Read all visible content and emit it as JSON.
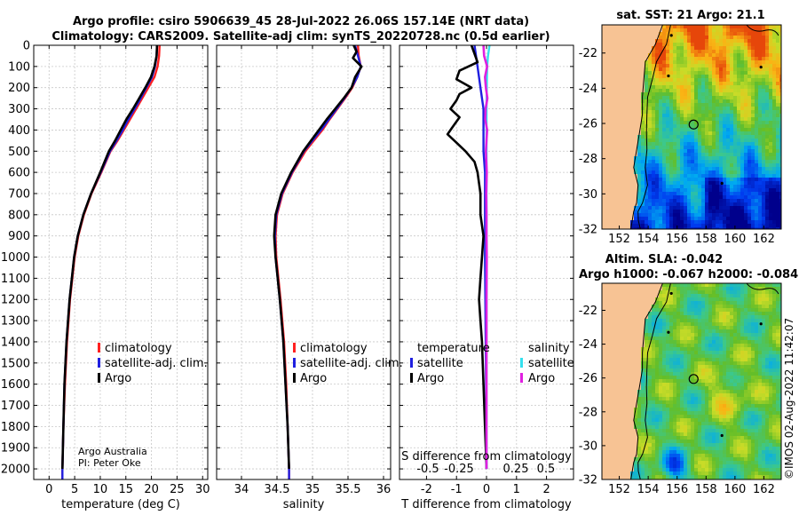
{
  "title": {
    "line1": "Argo profile: csiro 5906639_45 28-Jul-2022 26.06S 157.14E (NRT data)",
    "line2": "Climatology: CARS2009. Satellite-adj clim: synTS_20220728.nc (0.5d earlier)"
  },
  "credits": {
    "org": "Argo Australia",
    "pi": "PI: Peter Oke",
    "imos": "©IMOS 02-Aug-2022 11:42:07"
  },
  "colors": {
    "climatology": "#ff2020",
    "satellite": "#1f1fe0",
    "argo": "#000000",
    "t_sat": "#1f1fe0",
    "s_sat": "#33e0ee",
    "s_argo": "#e020e0",
    "land": "#f7c394"
  },
  "chart_data": [
    {
      "type": "line",
      "name": "temperature-profile",
      "xlabel": "temperature (deg C)",
      "ylabel": "",
      "xlim": [
        -3,
        31
      ],
      "ylim": [
        2050,
        0
      ],
      "xticks": [
        0,
        5,
        10,
        15,
        20,
        25,
        30
      ],
      "yticks": [
        0,
        100,
        200,
        300,
        400,
        500,
        600,
        700,
        800,
        900,
        1000,
        1100,
        1200,
        1300,
        1400,
        1500,
        1600,
        1700,
        1800,
        1900,
        2000
      ],
      "legend": [
        "climatology",
        "satellite-adj. clim.",
        "Argo"
      ],
      "series": [
        {
          "name": "climatology",
          "color": "#ff2020",
          "depth": [
            0,
            50,
            100,
            150,
            200,
            250,
            300,
            350,
            400,
            450,
            500,
            600,
            700,
            800,
            900,
            1000,
            1200,
            1400,
            1600,
            1800,
            2000,
            2050
          ],
          "values": [
            21.6,
            21.5,
            21.2,
            20.6,
            19.4,
            18.2,
            17.0,
            15.8,
            14.6,
            13.4,
            12.0,
            10.2,
            8.3,
            6.8,
            5.7,
            5.0,
            4.1,
            3.5,
            3.1,
            2.8,
            2.6,
            2.6
          ]
        },
        {
          "name": "satellite-adj. clim.",
          "color": "#1f1fe0",
          "depth": [
            0,
            50,
            100,
            150,
            200,
            250,
            300,
            350,
            400,
            450,
            500,
            600,
            700,
            800,
            900,
            1000,
            1200,
            1400,
            1600,
            1800,
            2000,
            2050
          ],
          "values": [
            21.1,
            21.0,
            20.7,
            20.1,
            19.0,
            17.9,
            16.7,
            15.5,
            14.4,
            13.2,
            11.9,
            10.1,
            8.2,
            6.7,
            5.6,
            4.9,
            4.0,
            3.4,
            3.0,
            2.8,
            2.6,
            2.6
          ]
        },
        {
          "name": "Argo",
          "color": "#000000",
          "depth": [
            0,
            50,
            100,
            150,
            200,
            250,
            300,
            350,
            400,
            450,
            500,
            600,
            700,
            800,
            900,
            1000,
            1200,
            1400,
            1600,
            1800,
            2000
          ],
          "values": [
            21.1,
            21.0,
            20.6,
            19.9,
            18.8,
            17.6,
            16.4,
            15.1,
            14.0,
            12.9,
            11.7,
            10.0,
            8.2,
            6.7,
            5.6,
            4.9,
            4.0,
            3.4,
            3.0,
            2.8,
            2.6
          ]
        }
      ]
    },
    {
      "type": "line",
      "name": "salinity-profile",
      "xlabel": "salinity",
      "ylabel": "",
      "xlim": [
        33.65,
        36.1
      ],
      "ylim": [
        2050,
        0
      ],
      "xticks": [
        34,
        34.5,
        35,
        35.5,
        36
      ],
      "legend": [
        "climatology",
        "satellite-adj. clim.",
        "Argo"
      ],
      "series": [
        {
          "name": "climatology",
          "color": "#ff2020",
          "depth": [
            0,
            50,
            100,
            150,
            200,
            250,
            300,
            350,
            400,
            450,
            500,
            600,
            700,
            800,
            900,
            1000,
            1200,
            1400,
            1600,
            1800,
            2000,
            2050
          ],
          "values": [
            35.64,
            35.65,
            35.68,
            35.63,
            35.56,
            35.46,
            35.35,
            35.24,
            35.14,
            35.02,
            34.9,
            34.72,
            34.58,
            34.5,
            34.48,
            34.49,
            34.55,
            34.6,
            34.63,
            34.65,
            34.67,
            34.67
          ]
        },
        {
          "name": "satellite-adj. clim.",
          "color": "#1f1fe0",
          "depth": [
            0,
            50,
            100,
            150,
            200,
            250,
            300,
            350,
            400,
            450,
            500,
            600,
            700,
            800,
            900,
            1000,
            1200,
            1400,
            1600,
            1800,
            2000,
            2050
          ],
          "values": [
            35.6,
            35.64,
            35.68,
            35.63,
            35.55,
            35.45,
            35.34,
            35.23,
            35.12,
            35.0,
            34.88,
            34.71,
            34.57,
            34.49,
            34.47,
            34.48,
            34.54,
            34.59,
            34.62,
            34.65,
            34.67,
            34.67
          ]
        },
        {
          "name": "Argo",
          "color": "#000000",
          "depth": [
            0,
            30,
            60,
            100,
            150,
            200,
            250,
            300,
            350,
            400,
            450,
            500,
            600,
            700,
            800,
            900,
            1000,
            1200,
            1400,
            1600,
            1800,
            2000
          ],
          "values": [
            35.58,
            35.62,
            35.57,
            35.69,
            35.6,
            35.55,
            35.44,
            35.32,
            35.2,
            35.09,
            34.98,
            34.87,
            34.7,
            34.56,
            34.48,
            34.46,
            34.48,
            34.54,
            34.59,
            34.62,
            34.65,
            34.67
          ]
        }
      ]
    },
    {
      "type": "line",
      "name": "difference-from-climatology",
      "xlabel": "T difference from climatology",
      "xlabel2": "S difference from climatology",
      "xlim": [
        -2.9,
        2.9
      ],
      "ylim": [
        2050,
        0
      ],
      "xticks": [
        -2,
        -1,
        0,
        1,
        2
      ],
      "s_ticks": [
        -0.5,
        -0.25,
        0,
        0.25,
        0.5
      ],
      "s_tick_labels": [
        "-0.5",
        "-0.25",
        "0",
        "0.25",
        "0.5"
      ],
      "legend_headers": [
        "temperature",
        "salinity"
      ],
      "legend": [
        "satellite",
        "Argo",
        "satellite",
        "Argo"
      ],
      "series": [
        {
          "name": "temperature satellite",
          "color": "#1f1fe0",
          "depth": [
            0,
            100,
            200,
            300,
            400,
            500,
            600,
            800,
            1000,
            1500,
            2000
          ],
          "values": [
            -0.4,
            -0.3,
            -0.2,
            -0.1,
            -0.1,
            -0.1,
            -0.05,
            -0.05,
            -0.05,
            -0.02,
            0
          ]
        },
        {
          "name": "temperature Argo",
          "color": "#000000",
          "depth": [
            0,
            40,
            80,
            120,
            160,
            200,
            230,
            260,
            300,
            340,
            380,
            420,
            460,
            500,
            550,
            600,
            700,
            800,
            900,
            1000,
            1100,
            1200,
            1300,
            1400,
            1600,
            1800,
            2000
          ],
          "values": [
            -0.5,
            -0.4,
            -0.3,
            -0.9,
            -1.0,
            -0.5,
            -0.9,
            -1.0,
            -1.2,
            -0.9,
            -1.1,
            -1.3,
            -1.0,
            -0.7,
            -0.4,
            -0.3,
            -0.2,
            -0.2,
            -0.1,
            -0.15,
            -0.2,
            -0.25,
            -0.2,
            -0.15,
            -0.1,
            -0.05,
            0
          ]
        },
        {
          "name": "salinity satellite",
          "color": "#33e0ee",
          "depth": [
            0,
            50,
            100,
            200,
            300,
            500,
            700,
            1000,
            1500,
            2000
          ],
          "values": [
            0.1,
            0.05,
            0.02,
            0.01,
            0.0,
            0.0,
            0.0,
            0.0,
            0.0,
            0.0
          ]
        },
        {
          "name": "salinity Argo",
          "color": "#e020e0",
          "depth": [
            0,
            50,
            100,
            150,
            200,
            250,
            300,
            350,
            400,
            450,
            500,
            600,
            700,
            800,
            900,
            1000,
            1200,
            1400,
            1600,
            1800,
            2000
          ],
          "values": [
            -0.1,
            -0.08,
            0.02,
            -0.05,
            -0.02,
            0.03,
            -0.03,
            -0.04,
            0.02,
            0.0,
            -0.02,
            0.01,
            -0.01,
            0.0,
            0.0,
            0.01,
            0.0,
            0.0,
            0.0,
            0.0,
            0.0
          ]
        }
      ]
    },
    {
      "type": "heatmap",
      "name": "sst-map",
      "title": "sat. SST: 21 Argo: 21.1",
      "xticks": [
        152,
        154,
        156,
        158,
        160,
        162
      ],
      "yticks": [
        -22,
        -24,
        -26,
        -28,
        -30,
        -32
      ],
      "xlim": [
        150.8,
        163.2
      ],
      "ylim": [
        -32,
        -20.4
      ],
      "marker_lon": 157.14,
      "marker_lat": -26.06
    },
    {
      "type": "heatmap",
      "name": "sla-map",
      "title1": "Altim. SLA: -0.042",
      "title2": "Argo h1000: -0.067 h2000: -0.084",
      "xticks": [
        152,
        154,
        156,
        158,
        160,
        162
      ],
      "yticks": [
        -22,
        -24,
        -26,
        -28,
        -30,
        -32
      ],
      "xlim": [
        150.8,
        163.2
      ],
      "ylim": [
        -32,
        -20.4
      ],
      "marker_lon": 157.14,
      "marker_lat": -26.06
    }
  ]
}
